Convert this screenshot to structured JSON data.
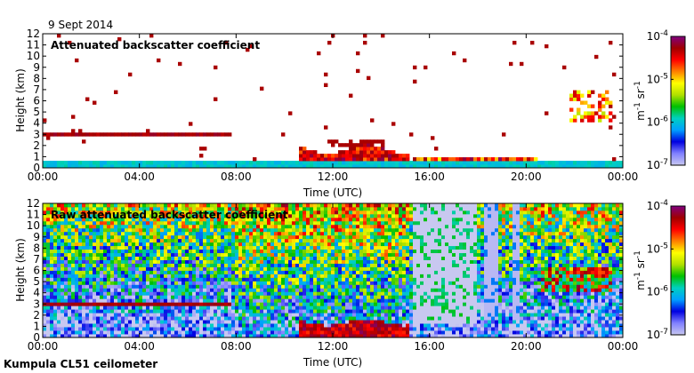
{
  "header": {
    "date": "9 Sept 2014"
  },
  "footer": {
    "instrument": "Kumpula CL51 ceilometer"
  },
  "colorscale": {
    "stops": [
      "#c8c8f0",
      "#8080ff",
      "#0000e0",
      "#00a0ff",
      "#00d0c0",
      "#00c000",
      "#b0e000",
      "#ffff00",
      "#ff8000",
      "#ff0000",
      "#a00000",
      "#800080"
    ],
    "tick_labels": [
      "10-7",
      "10-6",
      "10-5",
      "10-4"
    ],
    "tick_exponents": [
      "-7",
      "-6",
      "-5",
      "-4"
    ],
    "unit_label": "m-1 sr-1"
  },
  "chart_data": [
    {
      "type": "heatmap",
      "title": "Attenuated backscatter coefficient",
      "xlabel": "Time (UTC)",
      "ylabel": "Height (km)",
      "x_tick_labels": [
        "00:00",
        "04:00",
        "08:00",
        "12:00",
        "16:00",
        "20:00",
        "00:00"
      ],
      "xlim_hours": [
        0,
        24
      ],
      "y_ticks": [
        0,
        1,
        2,
        3,
        4,
        5,
        6,
        7,
        8,
        9,
        10,
        11,
        12
      ],
      "ylim_km": [
        0,
        12
      ],
      "colorbar_range": [
        1e-07,
        0.0001
      ],
      "features": [
        {
          "name": "residual layer",
          "start_h": 0.0,
          "end_h": 7.8,
          "height_km": 3.1,
          "level": 0.88
        },
        {
          "name": "boundary layer",
          "start_h": 0.0,
          "end_h": 24.0,
          "top_km": 0.6,
          "level": 0.3
        },
        {
          "name": "cloud base",
          "start_h": 10.8,
          "end_h": 15.2,
          "height_km": 1.5,
          "level": 0.9
        },
        {
          "name": "cloud base",
          "start_h": 15.3,
          "end_h": 20.5,
          "height_km": 0.8,
          "level": 0.85
        },
        {
          "name": "upper cloud",
          "start_h": 21.8,
          "end_h": 23.6,
          "height_km": 5.5,
          "level": 0.75
        }
      ]
    },
    {
      "type": "heatmap",
      "title": "Raw attenuated backscatter coefficient",
      "xlabel": "Time (UTC)",
      "ylabel": "Height (km)",
      "x_tick_labels": [
        "00:00",
        "04:00",
        "08:00",
        "12:00",
        "16:00",
        "20:00",
        "00:00"
      ],
      "xlim_hours": [
        0,
        24
      ],
      "y_ticks": [
        0,
        1,
        2,
        3,
        4,
        5,
        6,
        7,
        8,
        9,
        10,
        11,
        12
      ],
      "ylim_km": [
        0,
        12
      ],
      "colorbar_range": [
        1e-07,
        0.0001
      ],
      "features": [
        {
          "name": "residual layer",
          "start_h": 0.0,
          "end_h": 7.8,
          "height_km": 3.1,
          "level": 0.88
        },
        {
          "name": "cloud base",
          "start_h": 10.8,
          "end_h": 15.2,
          "height_km": 1.3,
          "level": 0.9
        },
        {
          "name": "precipitation gap",
          "start_h": 15.3,
          "end_h": 17.9,
          "level": 0.02
        },
        {
          "name": "upper cloud",
          "start_h": 20.6,
          "end_h": 23.6,
          "height_km": 5.5,
          "level": 0.75
        }
      ]
    }
  ]
}
